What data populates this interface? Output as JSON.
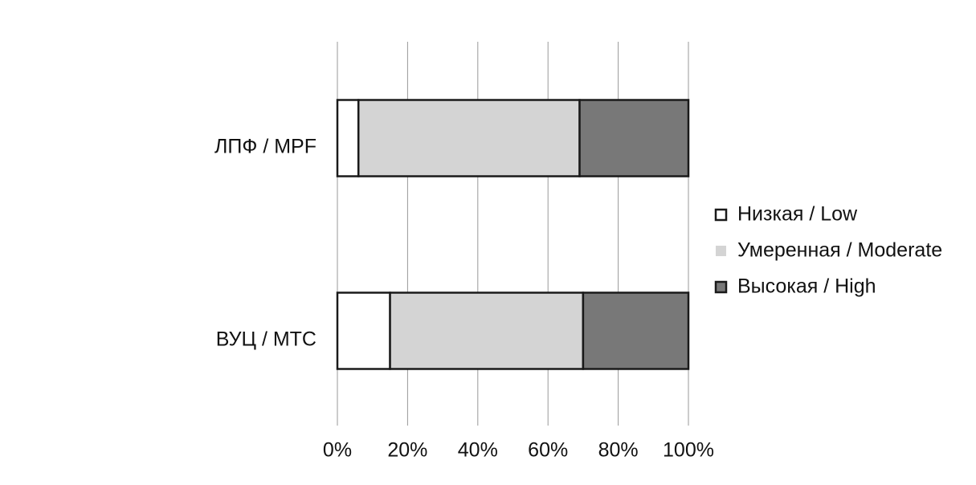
{
  "chart_data": {
    "type": "stacked-bar-horizontal",
    "categories": [
      "ЛПФ / MPF",
      "ВУЦ / МТС"
    ],
    "series": [
      {
        "name": "Низкая / Low",
        "color": "#ffffff",
        "values": [
          6,
          15
        ]
      },
      {
        "name": "Умеренная / Moderate",
        "color": "#d4d4d4",
        "values": [
          63,
          55
        ]
      },
      {
        "name": "Высокая / High",
        "color": "#787878",
        "values": [
          31,
          30
        ]
      }
    ],
    "xlim": [
      0,
      100
    ],
    "xticks": [
      {
        "value": 0,
        "label": "0%"
      },
      {
        "value": 20,
        "label": "20%"
      },
      {
        "value": 40,
        "label": "40%"
      },
      {
        "value": 60,
        "label": "60%"
      },
      {
        "value": 80,
        "label": "80%"
      },
      {
        "value": 100,
        "label": "100%"
      }
    ],
    "grid": true
  }
}
